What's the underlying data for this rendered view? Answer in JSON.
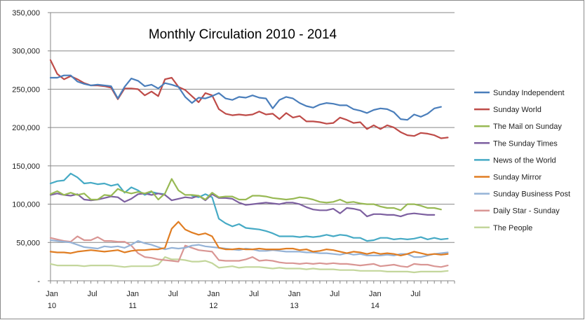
{
  "chart_data": {
    "type": "line",
    "title": "Monthly Circulation 2010 - 2014",
    "xlabel": "",
    "ylabel": "",
    "ylim": [
      0,
      350000
    ],
    "y_ticks": [
      "-",
      "50,000",
      "100,000",
      "150,000",
      "200,000",
      "250,000",
      "300,000",
      "350,000"
    ],
    "x_ticks": [
      {
        "month": 0,
        "lines": [
          "Jan",
          "10"
        ]
      },
      {
        "month": 6,
        "lines": [
          "Jul",
          ""
        ]
      },
      {
        "month": 12,
        "lines": [
          "Jan",
          "11"
        ]
      },
      {
        "month": 18,
        "lines": [
          "Jul",
          ""
        ]
      },
      {
        "month": 24,
        "lines": [
          "Jan",
          "12"
        ]
      },
      {
        "month": 30,
        "lines": [
          "Jul",
          ""
        ]
      },
      {
        "month": 36,
        "lines": [
          "Jan",
          "13"
        ]
      },
      {
        "month": 42,
        "lines": [
          "Jul",
          ""
        ]
      },
      {
        "month": 48,
        "lines": [
          "Jan",
          "14"
        ]
      },
      {
        "month": 54,
        "lines": [
          "Jul",
          ""
        ]
      }
    ],
    "x_months": 60,
    "grid": "horizontal",
    "legend": "right",
    "series": [
      {
        "name": "Sunday Independent",
        "color": "#4a7ebb",
        "values": [
          265000,
          265000,
          268000,
          268000,
          260000,
          257000,
          255000,
          256000,
          255000,
          254000,
          238000,
          253000,
          264000,
          261000,
          254000,
          256000,
          251000,
          258000,
          256000,
          253000,
          240000,
          232000,
          239000,
          238000,
          241000,
          245000,
          238000,
          236000,
          240000,
          239000,
          242000,
          239000,
          238000,
          225000,
          236000,
          240000,
          238000,
          232000,
          228000,
          226000,
          230000,
          232000,
          231000,
          229000,
          229000,
          224000,
          222000,
          219000,
          223000,
          225000,
          224000,
          220000,
          211000,
          210000,
          217000,
          214000,
          218000,
          225000,
          227000
        ]
      },
      {
        "name": "Sunday World",
        "color": "#be4b48",
        "values": [
          288000,
          270000,
          263000,
          267000,
          263000,
          258000,
          255000,
          255000,
          254000,
          252000,
          237000,
          251000,
          251000,
          250000,
          242000,
          247000,
          241000,
          263000,
          265000,
          253000,
          249000,
          241000,
          233000,
          245000,
          242000,
          224000,
          218000,
          216000,
          217000,
          216000,
          217000,
          221000,
          217000,
          218000,
          211000,
          219000,
          213000,
          215000,
          208000,
          208000,
          207000,
          205000,
          206000,
          213000,
          210000,
          206000,
          207000,
          198000,
          203000,
          198000,
          203000,
          200000,
          194000,
          190000,
          189000,
          193000,
          192000,
          190000,
          186000,
          187000
        ]
      },
      {
        "name": "The Mail on Sunday",
        "color": "#98b954",
        "values": [
          113000,
          117000,
          112000,
          115000,
          112000,
          114000,
          106000,
          106000,
          112000,
          111000,
          120000,
          116000,
          114000,
          116000,
          114000,
          117000,
          106000,
          114000,
          133000,
          118000,
          112000,
          112000,
          111000,
          106000,
          115000,
          109000,
          110000,
          110000,
          106000,
          106000,
          111000,
          111000,
          110000,
          108000,
          107000,
          106000,
          107000,
          109000,
          108000,
          106000,
          103000,
          102000,
          103000,
          106000,
          102000,
          103000,
          101000,
          100000,
          100000,
          97000,
          95000,
          95000,
          92000,
          100000,
          100000,
          98000,
          95000,
          95000,
          93000
        ]
      },
      {
        "name": "The Sunday Times",
        "color": "#7d60a0",
        "values": [
          112000,
          114000,
          112000,
          111000,
          113000,
          106000,
          105000,
          106000,
          108000,
          110000,
          109000,
          103000,
          107000,
          113000,
          114000,
          112000,
          114000,
          112000,
          105000,
          107000,
          109000,
          108000,
          111000,
          105000,
          113000,
          108000,
          108000,
          107000,
          102000,
          99000,
          100000,
          101000,
          102000,
          101000,
          100000,
          102000,
          102000,
          100000,
          96000,
          93000,
          92000,
          92000,
          94000,
          88000,
          95000,
          94000,
          92000,
          84000,
          87000,
          87000,
          86000,
          86000,
          84000,
          87000,
          88000,
          87000,
          86000,
          86000
        ]
      },
      {
        "name": "News of the World",
        "color": "#46aac5",
        "values": [
          127000,
          130000,
          131000,
          140000,
          135000,
          127000,
          128000,
          126000,
          127000,
          124000,
          126000,
          115000,
          122000,
          118000,
          112000,
          116000,
          114000,
          113000
        ]
      },
      {
        "name": "News of the World",
        "color": "#46aac5",
        "values": [
          111000,
          109000,
          113000,
          109000,
          81000,
          75000,
          71000,
          74000,
          69000,
          68000,
          67000,
          65000,
          62000,
          58000,
          58000,
          58000,
          57000,
          58000,
          57000,
          58000,
          60000,
          58000,
          60000,
          59000,
          56000,
          56000,
          52000,
          53000,
          56000,
          56000,
          54000,
          55000,
          54000,
          55000,
          57000,
          54000,
          56000,
          54000,
          55000
        ]
      },
      {
        "name": "Sunday Mirror",
        "color": "#e07d22",
        "values": [
          38000,
          37000,
          37000,
          36000,
          38000,
          39000,
          40000,
          39000,
          38000,
          39000,
          40000,
          37000,
          39000,
          40000,
          40000,
          41000,
          41000,
          43000,
          68000,
          77000,
          67000,
          63000,
          60000,
          62000,
          58000,
          43000,
          41000,
          41000,
          42000,
          41000,
          41000,
          42000,
          41000,
          41000,
          41000,
          42000,
          42000,
          40000,
          41000,
          38000,
          39000,
          41000,
          40000,
          38000,
          36000,
          38000,
          37000,
          35000,
          37000,
          35000,
          36000,
          35000,
          33000,
          35000,
          38000,
          36000,
          34000,
          35000,
          34000,
          35000
        ]
      },
      {
        "name": "Sunday Business Post",
        "color": "#95b3d7",
        "values": [
          53000,
          52000,
          51000,
          50000,
          47000,
          44000,
          43000,
          42000,
          45000,
          44000,
          45000,
          43000,
          47000,
          52000,
          49000,
          47000,
          44000,
          41000,
          43000,
          42000,
          43000,
          46000,
          47000,
          45000,
          44000,
          43000,
          42000,
          41000,
          40000,
          42000,
          41000,
          39000,
          39000,
          40000,
          39000,
          38000,
          38000,
          38000,
          37000,
          37000,
          36000,
          36000,
          35000,
          34000,
          36000,
          34000,
          35000,
          33000,
          33000,
          33000,
          34000,
          33000,
          35000,
          35000,
          31000,
          31000,
          33000,
          35000,
          36000,
          37000
        ]
      },
      {
        "name": "Daily Star - Sunday",
        "color": "#d99694",
        "values": [
          56000,
          54000,
          52000,
          51000,
          58000,
          53000,
          53000,
          57000,
          52000,
          52000,
          51000,
          51000,
          46000,
          36000,
          31000,
          30000,
          28000,
          27000,
          26000,
          25000,
          46000,
          43000,
          40000,
          39000,
          38000,
          27000,
          26000,
          26000,
          26000,
          28000,
          31000,
          26000,
          27000,
          26000,
          24000,
          23000,
          23000,
          22000,
          23000,
          22000,
          23000,
          22000,
          23000,
          22000,
          22000,
          21000,
          20000,
          21000,
          22000,
          19000,
          20000,
          21000,
          19000,
          18000,
          22000,
          21000,
          21000,
          19000,
          18000,
          20000
        ]
      },
      {
        "name": "The People",
        "color": "#c3d69b",
        "values": [
          22000,
          20000,
          20000,
          20000,
          20000,
          19000,
          20000,
          20000,
          20000,
          20000,
          19000,
          18000,
          19000,
          19000,
          19000,
          19000,
          21000,
          31000,
          28000,
          28000,
          27000,
          25000,
          25000,
          26000,
          23000,
          17000,
          18000,
          19000,
          17000,
          18000,
          18000,
          18000,
          17000,
          16000,
          17000,
          16000,
          16000,
          16000,
          15000,
          16000,
          15000,
          15000,
          15000,
          14000,
          14000,
          14000,
          13000,
          13000,
          13000,
          13000,
          12000,
          12000,
          12000,
          12000,
          11000,
          12000,
          12000,
          12000,
          12000,
          13000
        ]
      }
    ],
    "legend_entries": [
      {
        "name": "Sunday Independent",
        "color": "#4a7ebb"
      },
      {
        "name": "Sunday World",
        "color": "#be4b48"
      },
      {
        "name": "The Mail on Sunday",
        "color": "#98b954"
      },
      {
        "name": "The Sunday Times",
        "color": "#7d60a0"
      },
      {
        "name": "News of the World",
        "color": "#46aac5"
      },
      {
        "name": "Sunday Mirror",
        "color": "#e07d22"
      },
      {
        "name": "Sunday Business Post",
        "color": "#95b3d7"
      },
      {
        "name": "Daily Star - Sunday",
        "color": "#d99694"
      },
      {
        "name": "The People",
        "color": "#c3d69b"
      }
    ]
  }
}
